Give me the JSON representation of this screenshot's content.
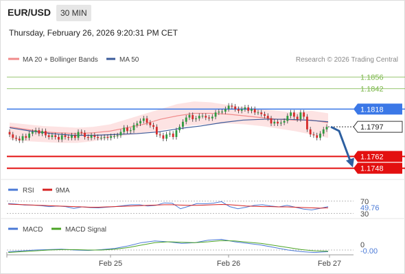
{
  "header": {
    "pair": "EUR/USD",
    "timeframe": "30 MIN",
    "datetime": "Thursday, February 26, 2026 9:20:31 PM CET"
  },
  "legend": {
    "ma20_bb": "MA 20 + Bollinger Bands",
    "ma50": "MA 50",
    "credit": "Research © 2026 Trading Central"
  },
  "colors": {
    "up": "#2e9b40",
    "down": "#d52b2b",
    "ma20": "#f08a8a",
    "ma50": "#3a5a9a",
    "band": "#fde3e3",
    "resistance": "#7ab648",
    "pivot": "#3b78e7",
    "support": "#e31010",
    "arrow": "#2d5fa0",
    "rsi": "#4a79d6",
    "rsi_ma": "#d62020",
    "macd": "#4a79d6",
    "macd_signal": "#4aa324"
  },
  "chart_data": [
    {
      "type": "candlestick",
      "title": "EUR/USD 30 MIN",
      "x": [
        "Feb 25",
        "Feb 26",
        "Feb 27"
      ],
      "y_scale": [
        1.1738,
        1.1866
      ],
      "levels": [
        {
          "value": 1.1856,
          "label": "1.1856",
          "kind": "resistance"
        },
        {
          "value": 1.1842,
          "label": "1.1842",
          "kind": "resistance"
        },
        {
          "value": 1.1818,
          "label": "1.1818",
          "kind": "pivot"
        },
        {
          "value": 1.1797,
          "label": "1.1797",
          "kind": "last"
        },
        {
          "value": 1.1762,
          "label": "1.1762",
          "kind": "support"
        },
        {
          "value": 1.1748,
          "label": "1.1748",
          "kind": "support"
        }
      ],
      "closes": [
        1.1788,
        1.1784,
        1.1783,
        1.1781,
        1.1786,
        1.1784,
        1.1789,
        1.1791,
        1.1793,
        1.1789,
        1.1792,
        1.1787,
        1.1785,
        1.1787,
        1.1785,
        1.1782,
        1.1787,
        1.1785,
        1.1784,
        1.1787,
        1.1784,
        1.1791,
        1.179,
        1.1785,
        1.1784,
        1.1787,
        1.1785,
        1.1784,
        1.1784,
        1.1785,
        1.1784,
        1.1786,
        1.1786,
        1.1787,
        1.1791,
        1.1796,
        1.1792,
        1.1793,
        1.1799,
        1.1801,
        1.1804,
        1.1807,
        1.1802,
        1.1799,
        1.1797,
        1.1788,
        1.1787,
        1.1783,
        1.1788,
        1.1789,
        1.1785,
        1.1793,
        1.1797,
        1.1803,
        1.1808,
        1.1811,
        1.1806,
        1.1807,
        1.181,
        1.181,
        1.1808,
        1.1807,
        1.1809,
        1.1814,
        1.1815,
        1.1815,
        1.1818,
        1.1822,
        1.1821,
        1.1818,
        1.1816,
        1.1818,
        1.182,
        1.1816,
        1.1818,
        1.1814,
        1.1814,
        1.1812,
        1.181,
        1.1807,
        1.1801,
        1.1803,
        1.1801,
        1.1802,
        1.1804,
        1.181,
        1.1814,
        1.1809,
        1.1806,
        1.1814,
        1.1809,
        1.1794,
        1.1788,
        1.1787,
        1.1784,
        1.1789,
        1.1794,
        1.1797
      ],
      "ma20_bb": {
        "ma": [
          1.1797,
          1.1794,
          1.1791,
          1.179,
          1.1789,
          1.179,
          1.1792,
          1.1796,
          1.18,
          1.1806,
          1.181,
          1.1813,
          1.1813,
          1.1812,
          1.181,
          1.1808,
          1.1806,
          1.1805,
          1.1805,
          1.1802
        ],
        "upper": [
          1.1802,
          1.18,
          1.1798,
          1.1797,
          1.1796,
          1.1797,
          1.18,
          1.1806,
          1.1812,
          1.1818,
          1.1824,
          1.1827,
          1.1826,
          1.1823,
          1.182,
          1.1818,
          1.1816,
          1.1814,
          1.1816,
          1.1813
        ],
        "lower": [
          1.1782,
          1.178,
          1.1779,
          1.1778,
          1.1778,
          1.178,
          1.1784,
          1.1787,
          1.1789,
          1.1793,
          1.1796,
          1.1799,
          1.18,
          1.1801,
          1.18,
          1.1798,
          1.1795,
          1.1792,
          1.1788,
          1.1784
        ]
      },
      "ma50": [
        1.1796,
        1.1792,
        1.1789,
        1.1787,
        1.1787,
        1.1788,
        1.1789,
        1.1791,
        1.1795,
        1.1798,
        1.1802,
        1.1805,
        1.1806,
        1.1806,
        1.1805,
        1.1803
      ]
    },
    {
      "type": "line",
      "title": "RSI",
      "series": [
        {
          "name": "RSI",
          "values": [
            62,
            60,
            57,
            57,
            55,
            52,
            54,
            52,
            46,
            51,
            49,
            48,
            50,
            52,
            55,
            58,
            58,
            54,
            56,
            64,
            63,
            45,
            53,
            62,
            61,
            63,
            68,
            52,
            45,
            50,
            56,
            58,
            54,
            51,
            56,
            50,
            44,
            41,
            46,
            52
          ]
        },
        {
          "name": "9MA",
          "values": [
            60,
            59,
            58,
            57,
            56,
            55,
            54,
            53,
            52,
            51,
            50,
            50,
            51,
            52,
            53,
            54,
            55,
            56,
            57,
            58,
            58,
            57,
            56,
            56,
            57,
            58,
            59,
            58,
            56,
            54,
            53,
            52,
            52,
            51,
            51,
            50,
            49,
            48,
            47,
            48
          ]
        }
      ],
      "levels": [
        70,
        30
      ],
      "last_label": "49.76",
      "axis_labels": [
        "70",
        "30"
      ]
    },
    {
      "type": "line",
      "title": "MACD",
      "series": [
        {
          "name": "MACD",
          "values": [
            -0.2,
            -0.1,
            0.0,
            0.05,
            0.1,
            0.0,
            -0.05,
            0.05,
            0.2,
            0.5,
            0.9,
            1.1,
            1.0,
            0.8,
            0.9,
            1.2,
            1.3,
            1.0,
            0.8,
            0.6,
            0.3,
            0.0,
            -0.2,
            -0.3,
            -0.2
          ]
        },
        {
          "name": "MACD Signal",
          "values": [
            -0.3,
            -0.2,
            -0.1,
            0.0,
            0.05,
            0.05,
            0.0,
            0.0,
            0.1,
            0.3,
            0.6,
            0.9,
            1.0,
            0.95,
            0.9,
            1.0,
            1.15,
            1.1,
            0.95,
            0.8,
            0.55,
            0.3,
            0.05,
            -0.1,
            -0.15
          ]
        }
      ],
      "last_label": "-0.00",
      "axis_labels": [
        "0"
      ]
    }
  ],
  "footer_axis": {
    "ticks": [
      "Feb 25",
      "Feb 26",
      "Feb 27"
    ]
  }
}
